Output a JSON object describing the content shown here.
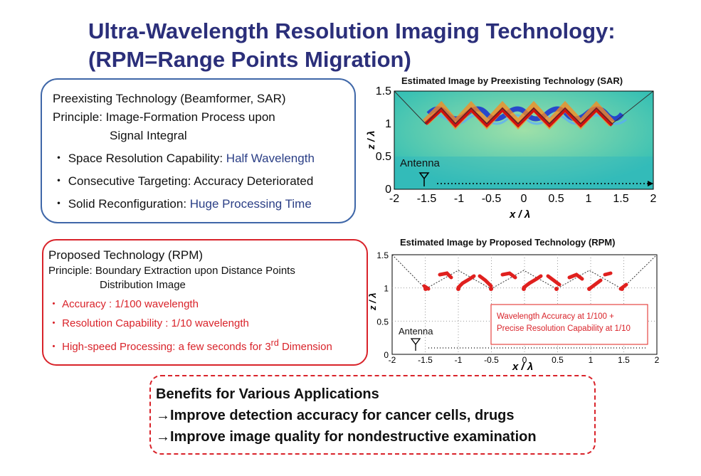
{
  "title": {
    "line1": "Ultra-Wavelength Resolution Imaging Technology:",
    "line2": "(RPM=Range Points Migration)"
  },
  "preexisting": {
    "heading": "Preexisting Technology (Beamformer, SAR)",
    "principle_line1": "Principle: Image-Formation Process upon",
    "principle_line2": "Signal Integral",
    "bullets": [
      {
        "label": "・ Space Resolution Capability: ",
        "value": "Half Wavelength"
      },
      {
        "label": "・ Consecutive Targeting: Accuracy Deteriorated",
        "value": ""
      },
      {
        "label": "・ Solid Reconfiguration: ",
        "value": "Huge Processing Time"
      }
    ]
  },
  "proposed": {
    "heading": "Proposed Technology (RPM)",
    "principle_line1": "Principle: Boundary Extraction upon Distance Points",
    "principle_line2": "Distribution Image",
    "bullets": [
      {
        "text": "・ Accuracy : 1/100 wavelength"
      },
      {
        "text": "・ Resolution Capability : 1/10 wavelength"
      },
      {
        "text": "・ High-speed Processing: a few seconds for 3",
        "sup": "rd",
        "tail": " Dimension"
      }
    ]
  },
  "sar_plot": {
    "title": "Estimated Image by Preexisting Technology (SAR)",
    "antenna_label": "Antenna",
    "xlabel": "x / λ",
    "ylabel": "z / λ",
    "xticks": [
      "-2",
      "-1.5",
      "-1",
      "-0.5",
      "0",
      "0.5",
      "1",
      "1.5",
      "2"
    ],
    "yticks": [
      "0",
      "0.5",
      "1",
      "1.5"
    ]
  },
  "rpm_plot": {
    "title": "Estimated Image by Proposed Technology (RPM)",
    "antenna_label": "Antenna",
    "xlabel": "x / λ",
    "ylabel": "z / λ",
    "xticks": [
      "-2",
      "-1.5",
      "-1",
      "-0.5",
      "0",
      "0.5",
      "1",
      "1.5",
      "2"
    ],
    "yticks": [
      "0",
      "0.5",
      "1",
      "1.5"
    ],
    "annotation_line1": "Wavelength Accuracy at 1/100 +",
    "annotation_line2": "Precise Resolution Capability at 1/10"
  },
  "benefits": {
    "heading": "Benefits for Various Applications",
    "line1": "→Improve detection accuracy for cancer cells, drugs",
    "line2": "→Improve image quality for nondestructive examination"
  },
  "colors": {
    "title": "#2b2f7a",
    "blue_border": "#3f67a8",
    "red_border": "#d9232a",
    "highlight_blue": "#2b3f86",
    "rpm_points": "#e0201e",
    "sar_field": "#3fc2a8"
  }
}
